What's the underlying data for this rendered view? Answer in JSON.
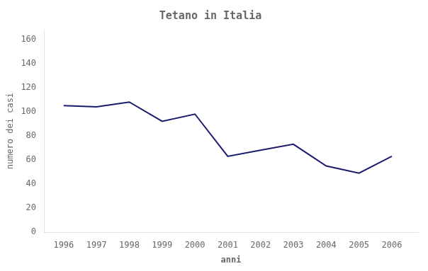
{
  "chart_data": {
    "type": "line",
    "title": "Tetano in Italia",
    "xlabel": "anni",
    "ylabel": "numero dei casi",
    "x": [
      1996,
      1997,
      1998,
      1999,
      2000,
      2001,
      2002,
      2003,
      2004,
      2005,
      2006
    ],
    "values": [
      105,
      104,
      108,
      92,
      98,
      63,
      68,
      73,
      55,
      49,
      63
    ],
    "color": "#1a1a6e",
    "xlim": [
      1995.4,
      2006.8
    ],
    "xticks": [
      1996,
      1997,
      1998,
      1999,
      2000,
      2001,
      2002,
      2003,
      2004,
      2005,
      2006
    ],
    "ylim": [
      0,
      168
    ],
    "yticks": [
      0,
      20,
      40,
      60,
      80,
      100,
      120,
      140,
      160
    ],
    "grid": false
  }
}
